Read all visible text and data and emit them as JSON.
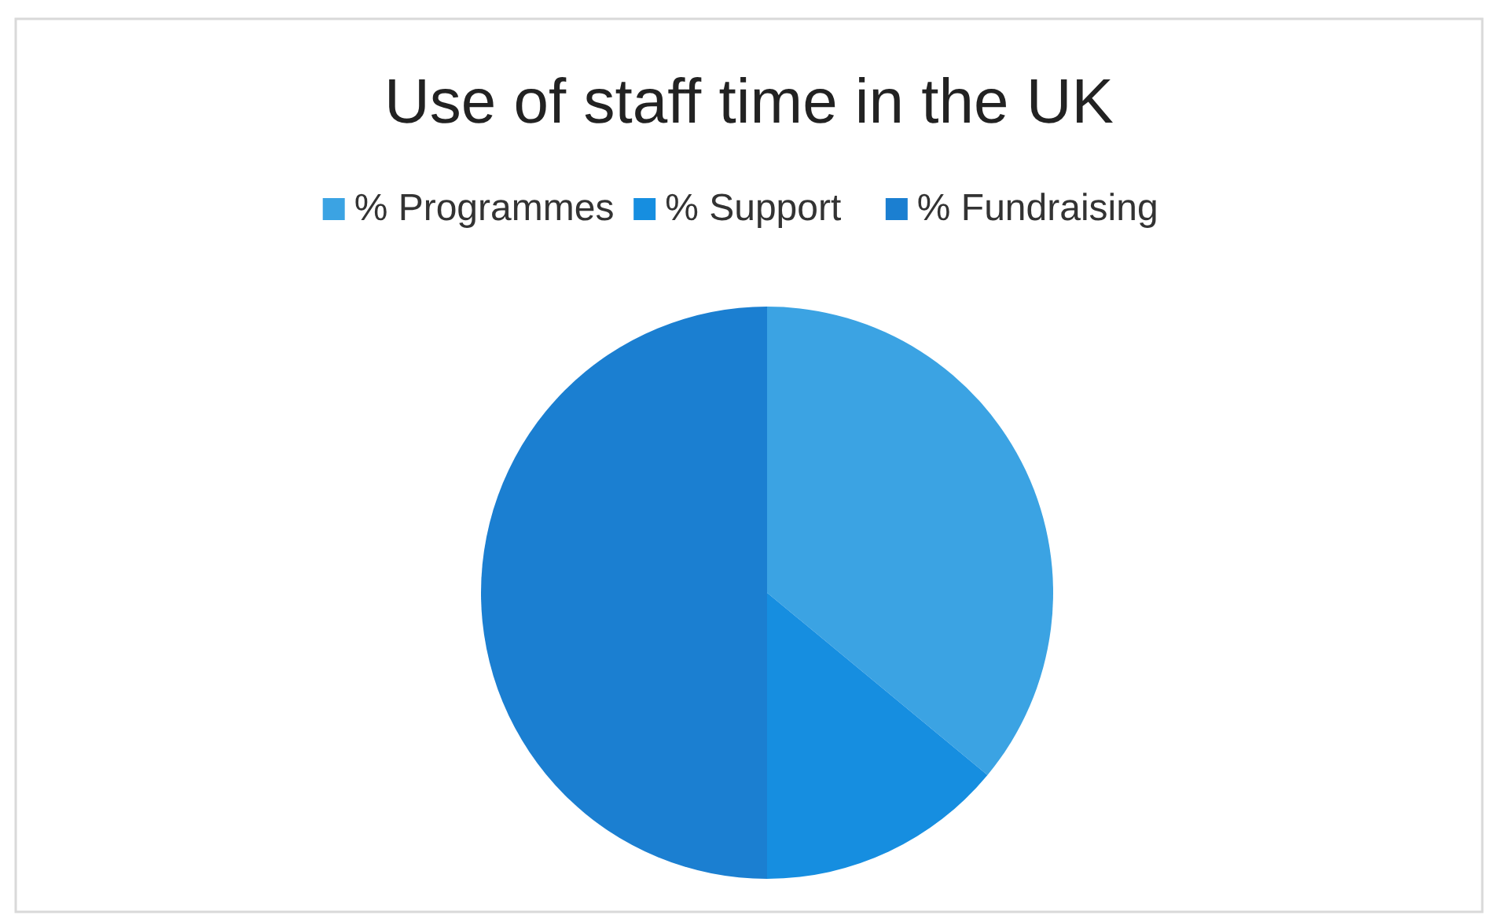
{
  "chart_data": {
    "type": "pie",
    "title": "Use of staff time in the UK",
    "categories": [
      "% Programmes",
      "% Support",
      "% Fundraising"
    ],
    "values": [
      36,
      14,
      50
    ],
    "colors": [
      "#3ba3e3",
      "#168ee0",
      "#1b7fd1"
    ],
    "legend": "top"
  }
}
